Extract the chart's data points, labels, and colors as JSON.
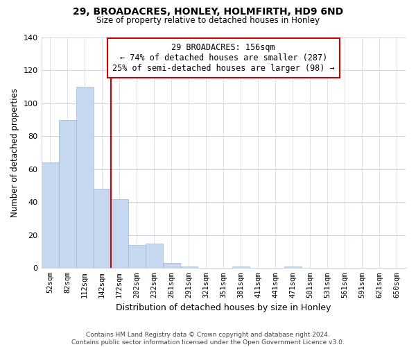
{
  "title": "29, BROADACRES, HONLEY, HOLMFIRTH, HD9 6ND",
  "subtitle": "Size of property relative to detached houses in Honley",
  "xlabel": "Distribution of detached houses by size in Honley",
  "ylabel": "Number of detached properties",
  "bar_labels": [
    "52sqm",
    "82sqm",
    "112sqm",
    "142sqm",
    "172sqm",
    "202sqm",
    "232sqm",
    "261sqm",
    "291sqm",
    "321sqm",
    "351sqm",
    "381sqm",
    "411sqm",
    "441sqm",
    "471sqm",
    "501sqm",
    "531sqm",
    "561sqm",
    "591sqm",
    "621sqm",
    "650sqm"
  ],
  "bar_heights": [
    64,
    90,
    110,
    48,
    42,
    14,
    15,
    3,
    1,
    0,
    0,
    1,
    0,
    0,
    1,
    0,
    0,
    0,
    0,
    0,
    0
  ],
  "bar_color": "#c5d8ef",
  "bar_edge_color": "#9ab8d8",
  "vline_x": 3.5,
  "vline_color": "#cc0000",
  "annotation_text": "29 BROADACRES: 156sqm\n← 74% of detached houses are smaller (287)\n25% of semi-detached houses are larger (98) →",
  "annotation_box_color": "#ffffff",
  "annotation_box_edge": "#cc0000",
  "ylim": [
    0,
    140
  ],
  "yticks": [
    0,
    20,
    40,
    60,
    80,
    100,
    120,
    140
  ],
  "footer": "Contains HM Land Registry data © Crown copyright and database right 2024.\nContains public sector information licensed under the Open Government Licence v3.0.",
  "background_color": "#ffffff",
  "grid_color": "#d0d8e8"
}
